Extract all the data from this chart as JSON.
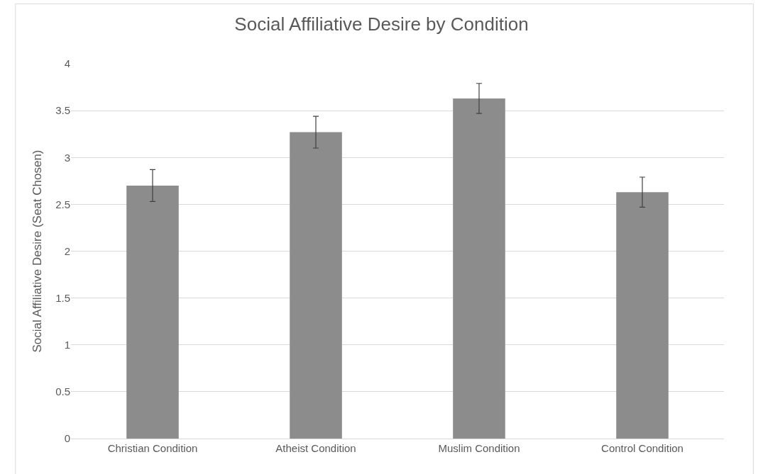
{
  "chart_data": {
    "type": "bar",
    "title": "Social Affiliative Desire by Condition",
    "ylabel": "Social Affiliative Desire (Seat Chosen)",
    "categories": [
      "Christian Condition",
      "Atheist Condition",
      "Muslim Condition",
      "Control Condition"
    ],
    "values": [
      2.7,
      3.27,
      3.63,
      2.63
    ],
    "errors": [
      0.17,
      0.17,
      0.16,
      0.16
    ],
    "color": "#8c8c8c",
    "ylim": [
      0,
      4
    ],
    "yticks": [
      0,
      0.5,
      1,
      1.5,
      2,
      2.5,
      3,
      3.5,
      4
    ],
    "grid": "y"
  }
}
